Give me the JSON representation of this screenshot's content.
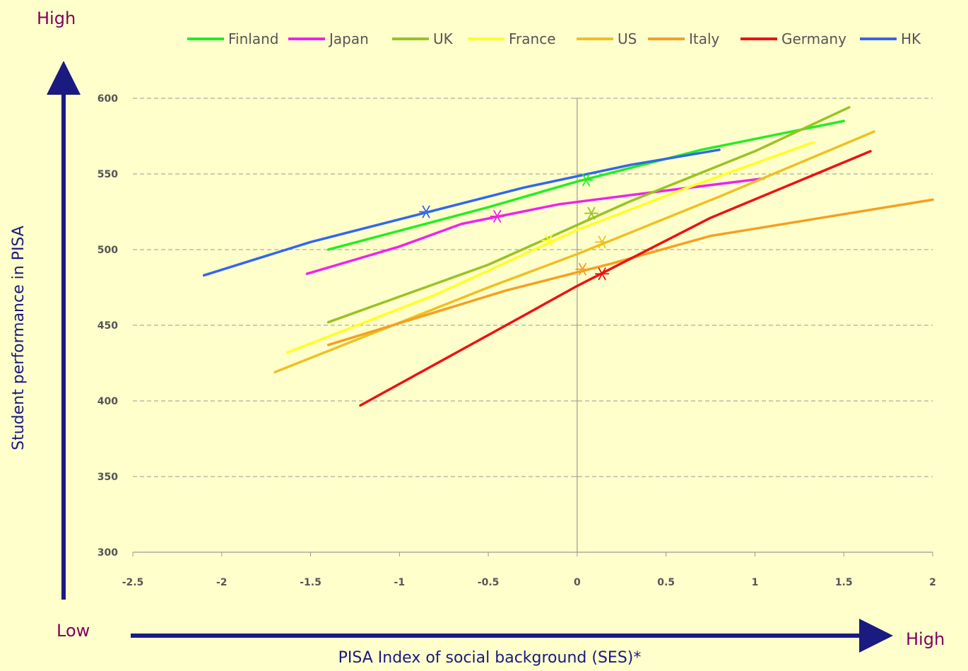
{
  "corner_labels": {
    "top_left": "High",
    "bottom_left": "Low",
    "bottom_right": "High"
  },
  "chart_data": {
    "type": "line",
    "ylabel": "Student performance in PISA",
    "xlabel": "PISA Index of social background (SES)*",
    "xlim": [
      -2.5,
      2
    ],
    "ylim": [
      300,
      600
    ],
    "x_ticks": [
      "-2.5",
      "-2",
      "-1.5",
      "-1",
      "-0.5",
      "0",
      "0.5",
      "1",
      "1.5",
      "2"
    ],
    "x_tick_values": [
      -2.5,
      -2,
      -1.5,
      -1,
      -0.5,
      0,
      0.5,
      1,
      1.5,
      2
    ],
    "y_ticks": [
      "300",
      "350",
      "400",
      "450",
      "500",
      "550",
      "600"
    ],
    "y_tick_values": [
      300,
      350,
      400,
      450,
      500,
      550,
      600
    ],
    "grid": "horizontal dashed",
    "legend_position": "top",
    "series": [
      {
        "name": "Finland",
        "color": "#22ee22",
        "points": [
          [
            -1.4,
            500
          ],
          [
            -0.5,
            528
          ],
          [
            0.0,
            545
          ],
          [
            0.7,
            566
          ],
          [
            1.5,
            585
          ]
        ],
        "marker": [
          0.05,
          546
        ]
      },
      {
        "name": "Japan",
        "color": "#ee22ee",
        "points": [
          [
            -1.52,
            484
          ],
          [
            -1.0,
            502
          ],
          [
            -0.65,
            517
          ],
          [
            -0.1,
            530
          ],
          [
            0.5,
            539
          ],
          [
            1.05,
            547
          ]
        ],
        "marker": [
          -0.45,
          522
        ]
      },
      {
        "name": "UK",
        "color": "#99c322",
        "points": [
          [
            -1.4,
            452
          ],
          [
            -0.5,
            490
          ],
          [
            0.3,
            532
          ],
          [
            1.0,
            565
          ],
          [
            1.53,
            594
          ]
        ],
        "marker": [
          0.08,
          524
        ]
      },
      {
        "name": "France",
        "color": "#ffff22",
        "points": [
          [
            -1.63,
            432
          ],
          [
            -0.8,
            470
          ],
          [
            0.0,
            513
          ],
          [
            0.6,
            540
          ],
          [
            1.33,
            571
          ]
        ],
        "marker": [
          -0.16,
          506
        ]
      },
      {
        "name": "US",
        "color": "#f0c020",
        "points": [
          [
            -1.7,
            419
          ],
          [
            -0.5,
            475
          ],
          [
            0.0,
            497
          ],
          [
            0.8,
            535
          ],
          [
            1.67,
            578
          ]
        ],
        "marker": [
          0.14,
          505
        ]
      },
      {
        "name": "Italy",
        "color": "#f5a020",
        "points": [
          [
            -1.4,
            437
          ],
          [
            -0.4,
            473
          ],
          [
            0.2,
            491
          ],
          [
            0.75,
            509
          ],
          [
            2.0,
            533
          ]
        ],
        "marker": [
          0.03,
          487
        ]
      },
      {
        "name": "Germany",
        "color": "#ee1111",
        "points": [
          [
            -1.22,
            397
          ],
          [
            -0.4,
            450
          ],
          [
            0.0,
            476
          ],
          [
            0.75,
            521
          ],
          [
            1.65,
            565
          ]
        ],
        "marker": [
          0.14,
          484
        ]
      },
      {
        "name": "HK",
        "color": "#3366ee",
        "points": [
          [
            -2.1,
            483
          ],
          [
            -1.5,
            505
          ],
          [
            -0.9,
            523
          ],
          [
            -0.3,
            541
          ],
          [
            0.3,
            556
          ],
          [
            0.8,
            566
          ]
        ],
        "marker": [
          -0.85,
          525
        ]
      }
    ]
  }
}
